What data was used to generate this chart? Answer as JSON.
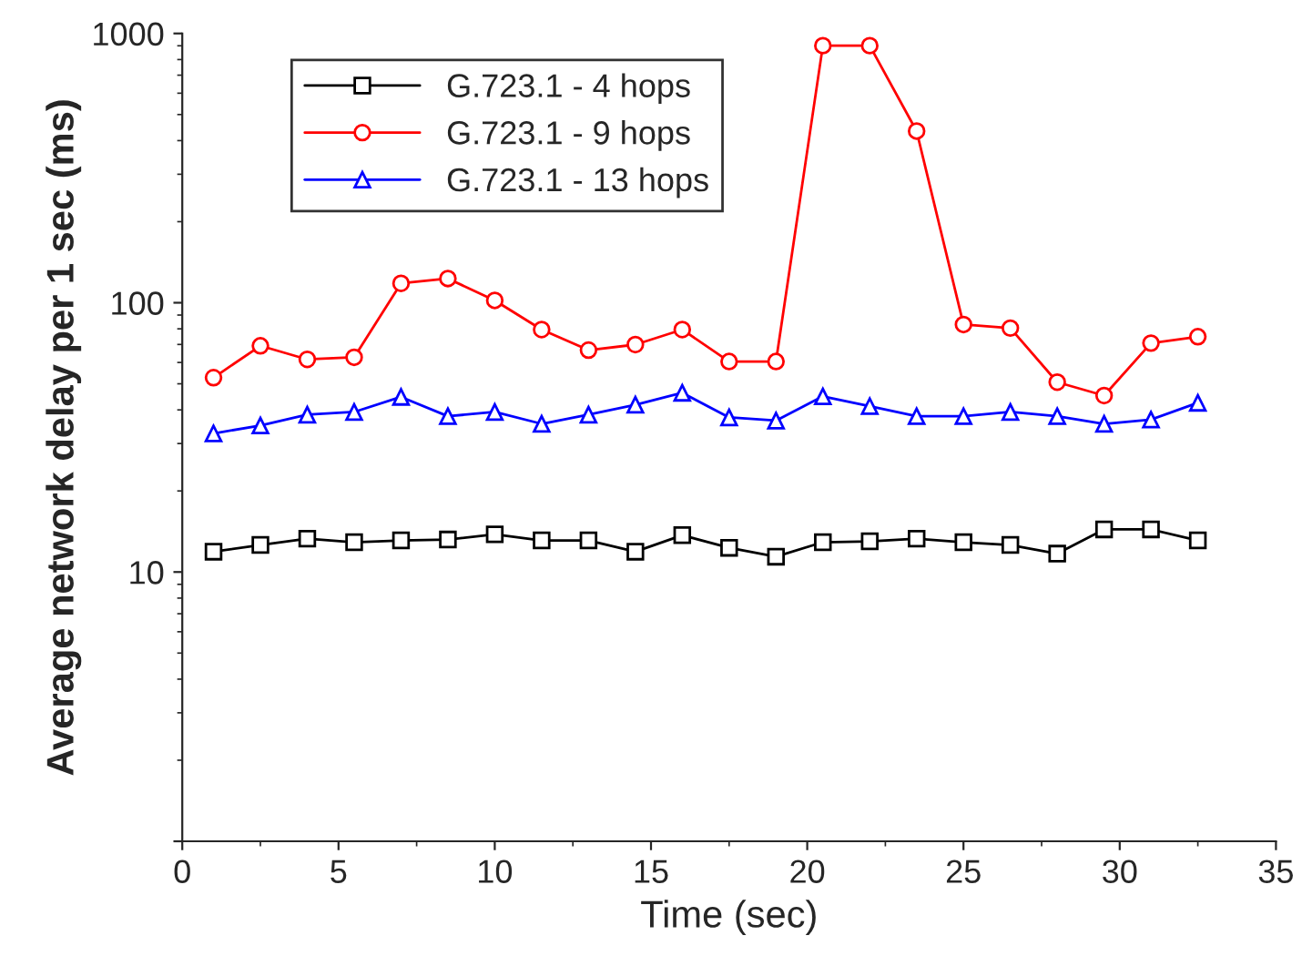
{
  "chart_data": {
    "type": "line",
    "xlabel": "Time (sec)",
    "ylabel": "Average network delay per 1 sec (ms)",
    "x": [
      1,
      2.5,
      4,
      5.5,
      7,
      8.5,
      10,
      11.5,
      13,
      14.5,
      16,
      17.5,
      19,
      20.5,
      22,
      23.5,
      25,
      26.5,
      28,
      29.5,
      31,
      32.5
    ],
    "series": [
      {
        "name": "G.723.1 - 4 hops",
        "color": "#000000",
        "marker": "square",
        "values": [
          11.9,
          12.6,
          13.3,
          12.9,
          13.1,
          13.2,
          13.8,
          13.1,
          13.1,
          11.9,
          13.7,
          12.3,
          11.4,
          12.9,
          13.0,
          13.3,
          12.9,
          12.6,
          11.7,
          14.4,
          14.4,
          13.1
        ]
      },
      {
        "name": "G.723.1 - 9 hops",
        "color": "#ff0000",
        "marker": "circle",
        "values": [
          52.7,
          69.2,
          61.6,
          62.7,
          118,
          123,
          102,
          79.5,
          66.7,
          69.9,
          79.5,
          60.5,
          60.5,
          901,
          901,
          434,
          83,
          80.5,
          50.7,
          45.2,
          70.8,
          74.8
        ]
      },
      {
        "name": "G.723.1 - 13 hops",
        "color": "#0000ff",
        "marker": "triangle",
        "values": [
          32.7,
          35.0,
          38.4,
          39.3,
          44.7,
          37.9,
          39.3,
          35.5,
          38.4,
          41.8,
          46.3,
          37.5,
          36.5,
          44.9,
          41.3,
          37.9,
          37.9,
          39.3,
          37.9,
          35.5,
          36.8,
          42.5
        ]
      }
    ],
    "log": "y",
    "xlim": [
      0,
      35
    ],
    "xticks": [
      0,
      5,
      10,
      15,
      20,
      25,
      30,
      35
    ],
    "ylim": [
      1,
      1000
    ],
    "yticks": [
      {
        "value": 1,
        "label": null
      },
      10,
      100,
      1000
    ],
    "grid": false,
    "legend": "top left",
    "line_style": "solid"
  }
}
